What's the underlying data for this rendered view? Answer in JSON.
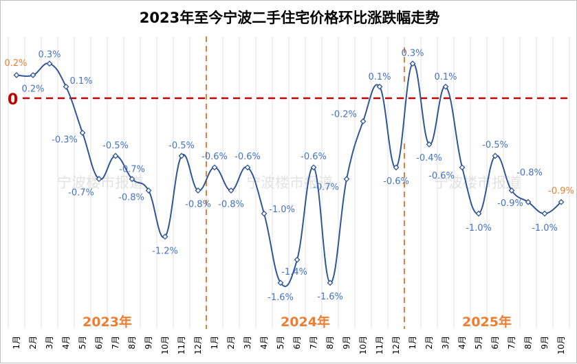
{
  "chart_data": {
    "type": "line",
    "title": "2023年至今宁波二手住宅价格环比涨跌幅走势",
    "xlabel": "",
    "ylabel": "",
    "ylim": [
      -2.0,
      0.4
    ],
    "grid": "vertical",
    "zero_line_label": "0",
    "watermark": "宁波楼市报道",
    "colors": {
      "line": "#2f5597",
      "label": "#4472c4",
      "highlight_label": "#ed7d31",
      "zero_line": "#c00000",
      "year_divider": "#ed7d31",
      "year_label": "#ed7d31",
      "grid": "#e0e0e0"
    },
    "years": [
      {
        "label": "2023年",
        "months": 12
      },
      {
        "label": "2024年",
        "months": 12
      },
      {
        "label": "2025年",
        "months": 10
      }
    ],
    "categories": [
      "1月",
      "2月",
      "3月",
      "4月",
      "5月",
      "6月",
      "7月",
      "8月",
      "9月",
      "10月",
      "11月",
      "12月",
      "1月",
      "2月",
      "3月",
      "4月",
      "5月",
      "6月",
      "7月",
      "8月",
      "9月",
      "10月",
      "11月",
      "12月",
      "1月",
      "2月",
      "3月",
      "4月",
      "5月",
      "6月",
      "7月",
      "8月",
      "9月",
      "10月"
    ],
    "series": [
      {
        "name": "环比涨跌幅",
        "unit": "%",
        "values": [
          0.2,
          0.2,
          0.3,
          0.1,
          -0.3,
          -0.7,
          -0.5,
          -0.7,
          -0.8,
          -1.2,
          -0.5,
          -0.8,
          -0.6,
          -0.8,
          -0.6,
          -1.0,
          -1.6,
          -1.4,
          -0.6,
          -1.6,
          -0.7,
          -0.2,
          0.1,
          -0.6,
          0.3,
          -0.4,
          0.1,
          -0.6,
          -1.0,
          -0.5,
          -0.8,
          -0.9,
          -1.0,
          -0.9
        ],
        "labels": [
          "0.2%",
          "0.2%",
          "0.3%",
          "0.1%",
          "-0.3%",
          "-0.7%",
          "-0.5%",
          "-0.7%",
          "-0.8%",
          "-1.2%",
          "-0.5%",
          "-0.8%",
          "-0.6%",
          "-0.8%",
          "-0.6%",
          "-1.0%",
          "-1.6%",
          "-1.4%",
          "-0.6%",
          "-1.6%",
          "-0.7%",
          "-0.2%",
          "0.1%",
          "-0.6%",
          "0.3%",
          "-0.4%",
          "0.1%",
          "-0.6%",
          "-1.0%",
          "-0.5%",
          "-0.8%",
          "-0.9%",
          "-1.0%",
          "-0.9%"
        ],
        "highlighted_indices": [
          0,
          33
        ]
      }
    ]
  }
}
